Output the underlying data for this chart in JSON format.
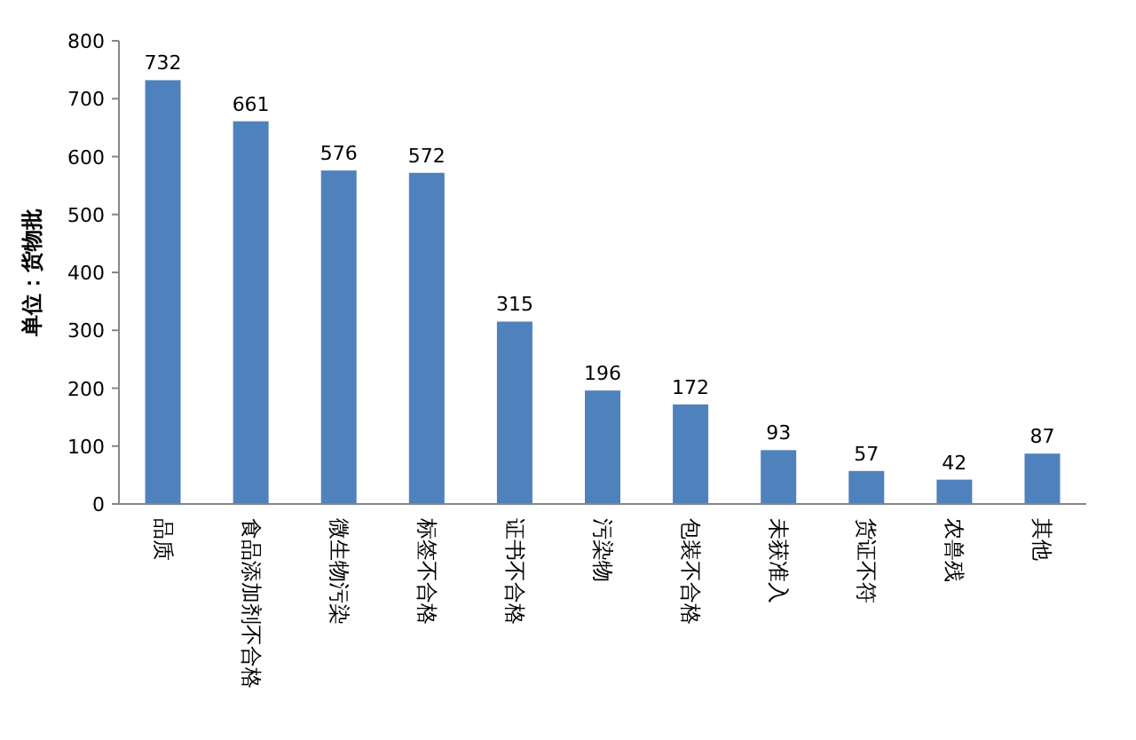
{
  "chart_data": {
    "type": "bar",
    "ylabel": "单位：货物批",
    "categories": [
      "品质",
      "食品添加剂不合格",
      "微生物污染",
      "标签不合格",
      "证书不合格",
      "污染物",
      "包装不合格",
      "未获准入",
      "货证不符",
      "农兽残",
      "其他"
    ],
    "values": [
      732,
      661,
      576,
      572,
      315,
      196,
      172,
      93,
      57,
      42,
      87
    ],
    "color": "#4f81bd",
    "ylim": [
      0,
      800
    ],
    "yticks": [
      0,
      100,
      200,
      300,
      400,
      500,
      600,
      700,
      800
    ],
    "data_labels": true
  }
}
